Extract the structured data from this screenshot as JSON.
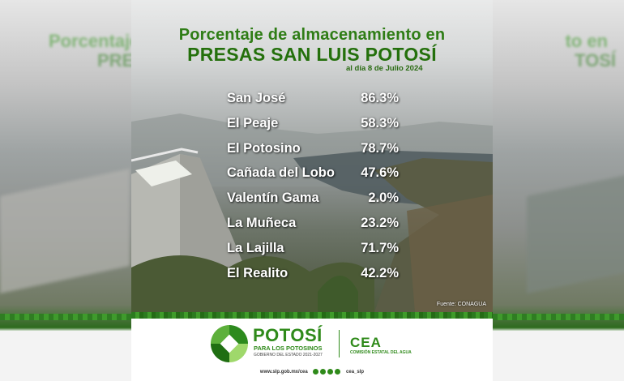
{
  "title": {
    "line1": "Porcentaje de almacenamiento en",
    "line2": "PRESAS SAN LUIS POTOSÍ",
    "date": "al día 8 de Julio 2024"
  },
  "dams": [
    {
      "name": "San José",
      "percent": "86.3%"
    },
    {
      "name": "El Peaje",
      "percent": "58.3%"
    },
    {
      "name": "El Potosino",
      "percent": "78.7%"
    },
    {
      "name": "Cañada del Lobo",
      "percent": "47.6%"
    },
    {
      "name": "Valentín Gama",
      "percent": "2.0%"
    },
    {
      "name": "La Muñeca",
      "percent": "23.2%"
    },
    {
      "name": "La Lajilla",
      "percent": "71.7%"
    },
    {
      "name": "El Realito",
      "percent": "42.2%"
    }
  ],
  "source": "Fuente: CONAGUA",
  "footer": {
    "brand": "POTOSÍ",
    "tagline": "PARA LOS POTOSINOS",
    "government": "GOBIERNO DEL ESTADO 2021-2027",
    "agency": "CEA",
    "agency_full": "COMISIÓN ESTATAL DEL AGUA",
    "website": "www.slp.gob.mx/cea",
    "handle": "cea_slp"
  },
  "side_ghost": {
    "left_line1": "Porcentaje de",
    "left_line2": "PRESAS",
    "right_line1": "to en",
    "right_line2": "TOSÍ"
  },
  "colors": {
    "brand_green": "#2f8a1a",
    "title_green": "#24700c"
  }
}
